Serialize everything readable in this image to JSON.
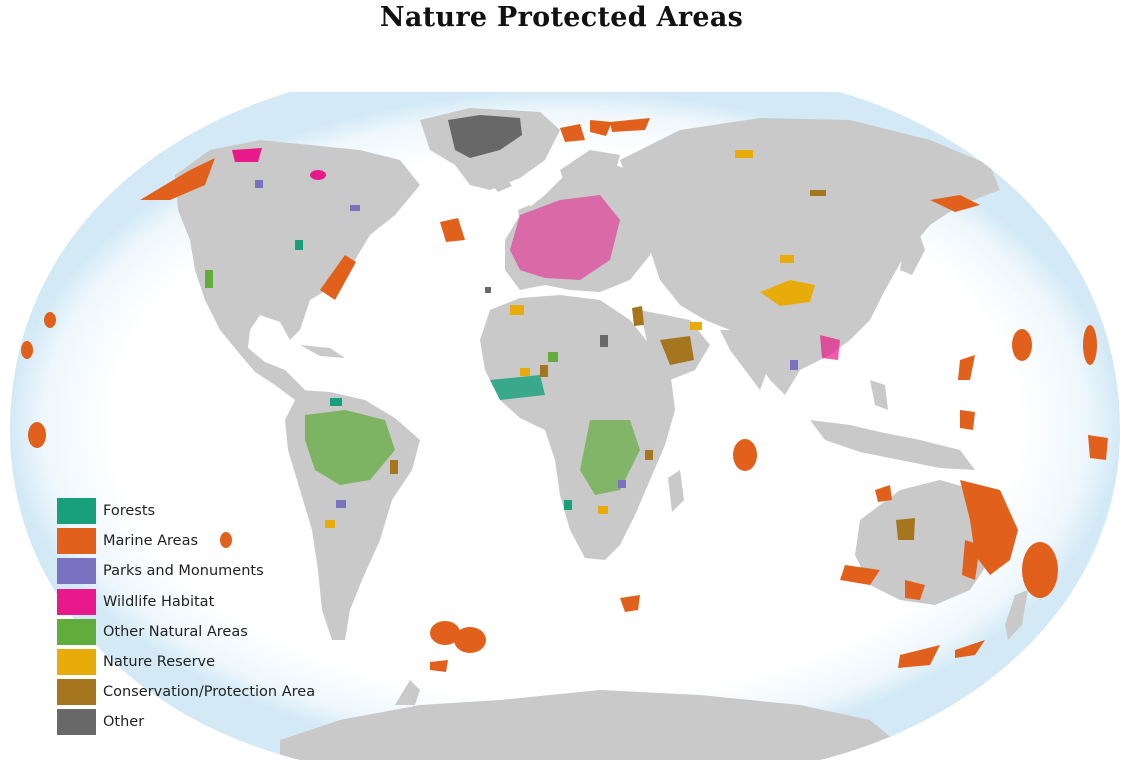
{
  "title": "Nature Protected Areas",
  "colors": {
    "ocean_glow": "#d8ecf7",
    "ocean": "#ffffff",
    "land": "#c9c9c9",
    "forests": "#17a07b",
    "marine": "#e0601c",
    "parks": "#7a72c0",
    "wildlife": "#e8198a",
    "other_natural": "#62ac3e",
    "reserve": "#e7ac0a",
    "conservation": "#a6761f",
    "other": "#686868"
  },
  "legend": [
    {
      "label": "Forests",
      "color": "#17a07b"
    },
    {
      "label": "Marine Areas",
      "color": "#e0601c"
    },
    {
      "label": "Parks and Monuments",
      "color": "#7a72c0"
    },
    {
      "label": "Wildlife Habitat",
      "color": "#e8198a"
    },
    {
      "label": "Other Natural Areas",
      "color": "#62ac3e"
    },
    {
      "label": "Nature Reserve",
      "color": "#e7ac0a"
    },
    {
      "label": "Conservation/Protection Area",
      "color": "#a6761f"
    },
    {
      "label": "Other",
      "color": "#686868"
    }
  ]
}
